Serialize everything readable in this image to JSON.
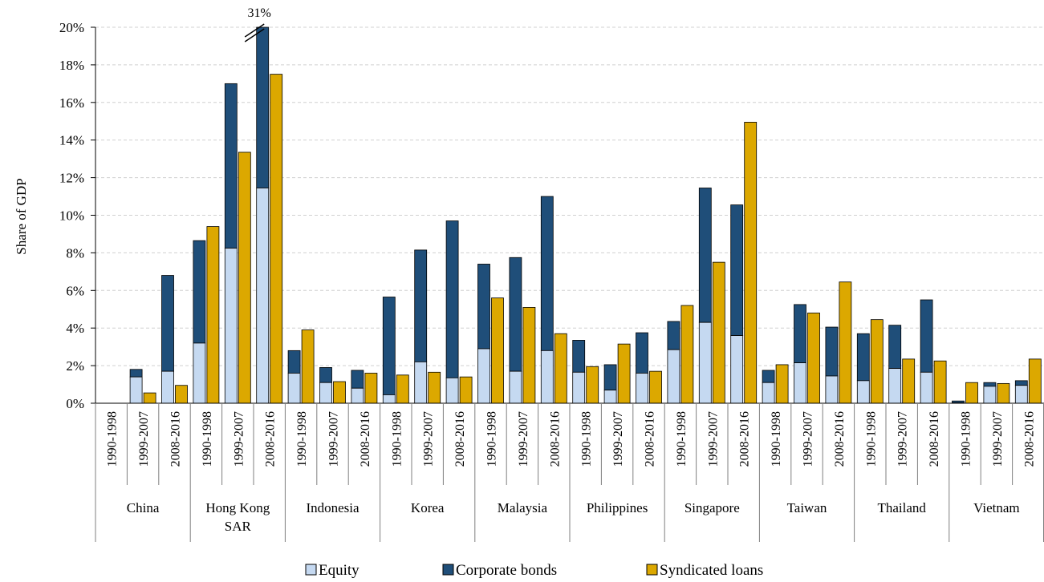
{
  "chart_data": {
    "type": "bar",
    "stacked_and_grouped": true,
    "ylabel": "Share of GDP",
    "ylim": [
      0,
      20
    ],
    "yticks": [
      "0%",
      "2%",
      "4%",
      "6%",
      "8%",
      "10%",
      "12%",
      "14%",
      "16%",
      "18%",
      "20%"
    ],
    "grid": true,
    "legend_position": "bottom",
    "annotation": {
      "text": "31%",
      "note": "axis break on Hong Kong SAR 2008-2016 bonds bar"
    },
    "periods": [
      "1990-1998",
      "1999-2007",
      "2008-2016"
    ],
    "groups": [
      {
        "name": "China",
        "label_lines": [
          "China"
        ],
        "equity": [
          0,
          1.4,
          1.7
        ],
        "bonds": [
          0,
          0.4,
          5.1
        ],
        "loans": [
          0,
          0.55,
          0.95
        ]
      },
      {
        "name": "Hong Kong SAR",
        "label_lines": [
          "Hong Kong",
          "SAR"
        ],
        "equity": [
          3.2,
          8.25,
          11.45
        ],
        "bonds": [
          5.45,
          8.75,
          19.55
        ],
        "loans": [
          9.4,
          13.35,
          17.5
        ]
      },
      {
        "name": "Indonesia",
        "label_lines": [
          "Indonesia"
        ],
        "equity": [
          1.6,
          1.1,
          0.8
        ],
        "bonds": [
          1.2,
          0.8,
          0.95
        ],
        "loans": [
          3.9,
          1.15,
          1.6
        ]
      },
      {
        "name": "Korea",
        "label_lines": [
          "Korea"
        ],
        "equity": [
          0.45,
          2.2,
          1.35
        ],
        "bonds": [
          5.2,
          5.95,
          8.35
        ],
        "loans": [
          1.5,
          1.65,
          1.4
        ]
      },
      {
        "name": "Malaysia",
        "label_lines": [
          "Malaysia"
        ],
        "equity": [
          2.9,
          1.7,
          2.8
        ],
        "bonds": [
          4.5,
          6.05,
          8.2
        ],
        "loans": [
          5.6,
          5.1,
          3.7
        ]
      },
      {
        "name": "Philippines",
        "label_lines": [
          "Philippines"
        ],
        "equity": [
          1.65,
          0.7,
          1.6
        ],
        "bonds": [
          1.7,
          1.35,
          2.15
        ],
        "loans": [
          1.95,
          3.15,
          1.7
        ]
      },
      {
        "name": "Singapore",
        "label_lines": [
          "Singapore"
        ],
        "equity": [
          2.85,
          4.3,
          3.6
        ],
        "bonds": [
          1.5,
          7.15,
          6.95
        ],
        "loans": [
          5.2,
          7.5,
          14.95
        ]
      },
      {
        "name": "Taiwan",
        "label_lines": [
          "Taiwan"
        ],
        "equity": [
          1.1,
          2.15,
          1.45
        ],
        "bonds": [
          0.65,
          3.1,
          2.6
        ],
        "loans": [
          2.05,
          4.8,
          6.45
        ]
      },
      {
        "name": "Thailand",
        "label_lines": [
          "Thailand"
        ],
        "equity": [
          1.2,
          1.85,
          1.65
        ],
        "bonds": [
          2.5,
          2.3,
          3.85
        ],
        "loans": [
          4.45,
          2.35,
          2.25
        ]
      },
      {
        "name": "Vietnam",
        "label_lines": [
          "Vietnam"
        ],
        "equity": [
          0.02,
          0.9,
          0.95
        ],
        "bonds": [
          0.1,
          0.2,
          0.25
        ],
        "loans": [
          1.1,
          1.05,
          2.35
        ]
      }
    ],
    "legend": [
      {
        "key": "equity",
        "label": "Equity",
        "color": "#c5d9f1"
      },
      {
        "key": "bonds",
        "label": "Corporate bonds",
        "color": "#1f4e79"
      },
      {
        "key": "loans",
        "label": "Syndicated loans",
        "color": "#dca800"
      }
    ]
  }
}
